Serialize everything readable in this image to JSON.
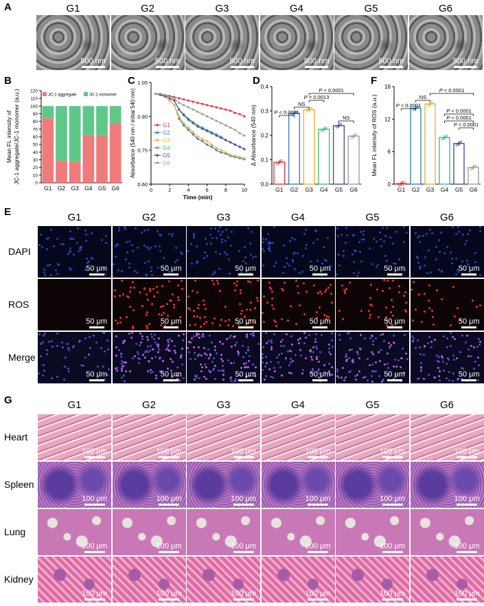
{
  "panel_labels": [
    "A",
    "B",
    "C",
    "D",
    "E",
    "F",
    "G"
  ],
  "groups": [
    "G1",
    "G2",
    "G3",
    "G4",
    "G5",
    "G6"
  ],
  "scale_tem": "500 nm",
  "scale_fl": "50 μm",
  "scale_he": "100 μm",
  "rows_e": [
    "DAPI",
    "ROS",
    "Merge"
  ],
  "rows_g": [
    "Heart",
    "Spleen",
    "Lung",
    "Kidney"
  ],
  "colors": {
    "G1": "#e8383d",
    "G2": "#3f7fbf",
    "G3": "#f2b233",
    "G4": "#3fbf7f",
    "G5": "#4b4ba8",
    "G6": "#9e9e9e",
    "jc_aggregate": "#f07b7b",
    "jc_monomer": "#5fc78a"
  },
  "chart_data": [
    {
      "type": "bar",
      "panel": "B",
      "ylabel_line1": "Mean FL intensity of",
      "ylabel_line2": "JC-1 aggregate/JC-1 monomer (a.u.)",
      "categories": [
        "G1",
        "G2",
        "G3",
        "G4",
        "G5",
        "G6"
      ],
      "ylim": [
        0,
        120
      ],
      "yticks": [
        0,
        10,
        20,
        30,
        40,
        50,
        60,
        70,
        80,
        90,
        100,
        110,
        120
      ],
      "legend": [
        "JC-1 aggregate",
        "JC-1 monomer"
      ],
      "series": [
        {
          "name": "JC-1 aggregate",
          "values": [
            84,
            29,
            27,
            62,
            61,
            78
          ]
        },
        {
          "name": "JC-1 monomer",
          "values": [
            16,
            71,
            73,
            38,
            39,
            22
          ]
        }
      ]
    },
    {
      "type": "line",
      "panel": "C",
      "xlabel": "Time (min)",
      "ylabel": "Absorbance (540 nm / initial 540 nm)",
      "xlim": [
        0,
        10
      ],
      "ylim": [
        0.6,
        1.05
      ],
      "xticks": [
        0,
        2,
        4,
        6,
        8,
        10
      ],
      "yticks": [
        0.6,
        0.75,
        0.9,
        1.05
      ],
      "yticklabels": [
        "0.60",
        "0.75",
        "0.90",
        "1.05"
      ],
      "x": [
        0.5,
        1,
        1.5,
        2,
        2.5,
        3,
        3.5,
        4,
        4.5,
        5,
        5.5,
        6,
        6.5,
        7,
        7.5,
        8,
        8.5,
        9,
        9.5,
        10
      ],
      "series": [
        {
          "name": "G1",
          "values": [
            1.0,
            1.0,
            0.995,
            0.99,
            0.985,
            0.98,
            0.975,
            0.97,
            0.965,
            0.96,
            0.955,
            0.95,
            0.945,
            0.94,
            0.935,
            0.93,
            0.925,
            0.915,
            0.91,
            0.9
          ]
        },
        {
          "name": "G2",
          "values": [
            1.0,
            0.995,
            0.985,
            0.97,
            0.95,
            0.89,
            0.86,
            0.84,
            0.82,
            0.8,
            0.79,
            0.775,
            0.765,
            0.75,
            0.74,
            0.735,
            0.725,
            0.72,
            0.715,
            0.71
          ]
        },
        {
          "name": "G3",
          "values": [
            1.0,
            0.995,
            0.985,
            0.97,
            0.95,
            0.9,
            0.87,
            0.85,
            0.83,
            0.81,
            0.8,
            0.79,
            0.775,
            0.76,
            0.75,
            0.74,
            0.73,
            0.725,
            0.72,
            0.715
          ]
        },
        {
          "name": "G4",
          "values": [
            1.0,
            0.995,
            0.99,
            0.98,
            0.97,
            0.93,
            0.91,
            0.89,
            0.875,
            0.86,
            0.85,
            0.84,
            0.83,
            0.82,
            0.81,
            0.795,
            0.785,
            0.775,
            0.765,
            0.755
          ]
        },
        {
          "name": "G5",
          "values": [
            1.0,
            0.995,
            0.99,
            0.98,
            0.97,
            0.93,
            0.905,
            0.885,
            0.87,
            0.855,
            0.845,
            0.835,
            0.825,
            0.815,
            0.805,
            0.795,
            0.785,
            0.775,
            0.765,
            0.755
          ]
        },
        {
          "name": "G6",
          "values": [
            1.0,
            1.0,
            0.995,
            0.985,
            0.98,
            0.96,
            0.95,
            0.94,
            0.93,
            0.92,
            0.91,
            0.9,
            0.89,
            0.88,
            0.87,
            0.86,
            0.85,
            0.84,
            0.825,
            0.815
          ]
        }
      ]
    },
    {
      "type": "bar",
      "panel": "D",
      "ylabel": "Δ Absorbance (540 nm)",
      "categories": [
        "G1",
        "G2",
        "G3",
        "G4",
        "G5",
        "G6"
      ],
      "values": [
        0.09,
        0.29,
        0.305,
        0.225,
        0.24,
        0.197
      ],
      "ylim": [
        0,
        0.4
      ],
      "yticks": [
        0,
        0.1,
        0.2,
        0.3,
        0.4
      ],
      "yticklabels": [
        "0.0",
        "0.1",
        "0.2",
        "0.3",
        "0.4"
      ],
      "annotations": [
        "P < 0.0001",
        "NS",
        "P = 0.0013",
        "P < 0.0001",
        "NS"
      ]
    },
    {
      "type": "bar",
      "panel": "F",
      "ylabel": "Mean FL intensity of ROS (a.u.)",
      "categories": [
        "G1",
        "G2",
        "G3",
        "G4",
        "G5",
        "G6"
      ],
      "values": [
        0.1,
        14,
        14.8,
        8.6,
        7.5,
        3.1
      ],
      "ylim": [
        0,
        18
      ],
      "yticks": [
        0,
        6,
        12,
        18
      ],
      "yticklabels": [
        "0",
        "6",
        "12",
        "18"
      ],
      "annotations": [
        "P < 0.0001",
        "NS",
        "P < 0.0001",
        "P < 0.0001",
        "P < 0.0001",
        "P < 0.0001"
      ]
    }
  ]
}
